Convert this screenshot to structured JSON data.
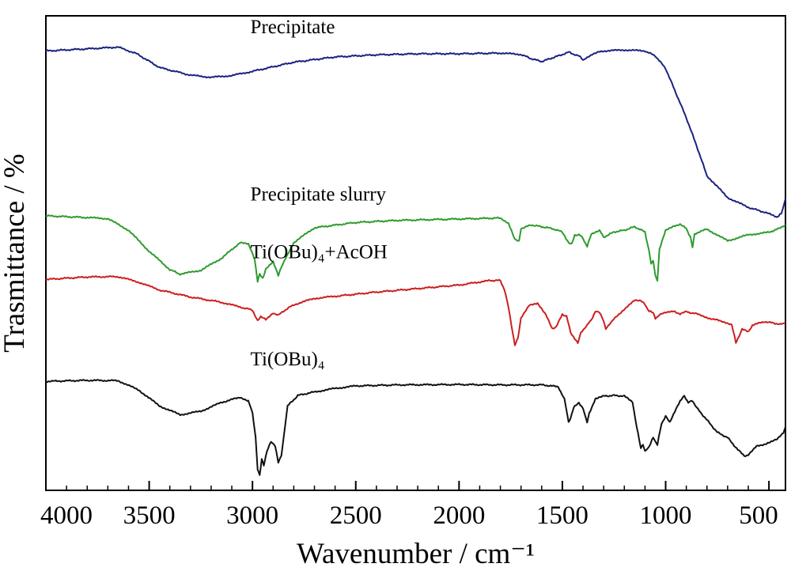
{
  "chart_data": {
    "type": "line",
    "xlabel": "Wavenumber / cm⁻¹",
    "ylabel": "Trasmittance / %",
    "xlim": [
      4000,
      420
    ],
    "x_reversed": true,
    "y_ticks_shown": false,
    "x_ticks": [
      4000,
      3500,
      3000,
      2500,
      2000,
      1500,
      1000,
      500
    ],
    "x_tick_labels": [
      "4000",
      "3500",
      "3000",
      "2500",
      "2000",
      "1500",
      "1000",
      "500"
    ],
    "y_units": "relative transmittance (stacked, offset traces; no numeric y scale printed)",
    "series": [
      {
        "name": "Precipitate",
        "color": "#1a237e",
        "points": [
          [
            4000,
            95.0
          ],
          [
            3800,
            95.6
          ],
          [
            3650,
            96.1
          ],
          [
            3560,
            94.2
          ],
          [
            3450,
            90.3
          ],
          [
            3300,
            88.1
          ],
          [
            3200,
            87.5
          ],
          [
            3100,
            88.0
          ],
          [
            3000,
            89.2
          ],
          [
            2800,
            91.8
          ],
          [
            2600,
            93.3
          ],
          [
            2400,
            93.9
          ],
          [
            2200,
            94.2
          ],
          [
            2000,
            94.2
          ],
          [
            1800,
            94.4
          ],
          [
            1700,
            94.0
          ],
          [
            1650,
            92.8
          ],
          [
            1600,
            92.0
          ],
          [
            1550,
            93.0
          ],
          [
            1500,
            94.0
          ],
          [
            1470,
            94.7
          ],
          [
            1450,
            94.2
          ],
          [
            1420,
            93.6
          ],
          [
            1400,
            92.5
          ],
          [
            1380,
            93.0
          ],
          [
            1350,
            94.3
          ],
          [
            1300,
            95.0
          ],
          [
            1200,
            95.3
          ],
          [
            1100,
            95.0
          ],
          [
            1050,
            93.6
          ],
          [
            1000,
            90.0
          ],
          [
            950,
            83.0
          ],
          [
            900,
            76.0
          ],
          [
            850,
            68.0
          ],
          [
            800,
            59.5
          ],
          [
            700,
            53.3
          ],
          [
            600,
            50.5
          ],
          [
            520,
            49.1
          ],
          [
            460,
            47.8
          ],
          [
            440,
            48.7
          ],
          [
            430,
            50.5
          ],
          [
            420,
            53.0
          ]
        ]
      },
      {
        "name": "Precipitate slurry",
        "color": "#2e9b2e",
        "points": [
          [
            4000,
            48.1
          ],
          [
            3800,
            47.6
          ],
          [
            3700,
            47.3
          ],
          [
            3600,
            44.0
          ],
          [
            3500,
            38.0
          ],
          [
            3400,
            32.8
          ],
          [
            3350,
            31.5
          ],
          [
            3250,
            32.6
          ],
          [
            3150,
            36.0
          ],
          [
            3060,
            40.5
          ],
          [
            3020,
            40.0
          ],
          [
            2990,
            36.0
          ],
          [
            2975,
            29.3
          ],
          [
            2965,
            31.5
          ],
          [
            2950,
            30.4
          ],
          [
            2935,
            33.0
          ],
          [
            2900,
            35.2
          ],
          [
            2875,
            31.0
          ],
          [
            2860,
            33.5
          ],
          [
            2800,
            40.5
          ],
          [
            2700,
            44.7
          ],
          [
            2500,
            46.2
          ],
          [
            2300,
            46.8
          ],
          [
            2000,
            47.2
          ],
          [
            1850,
            47.4
          ],
          [
            1800,
            47.5
          ],
          [
            1760,
            46.0
          ],
          [
            1730,
            41.3
          ],
          [
            1710,
            41.0
          ],
          [
            1700,
            44.5
          ],
          [
            1650,
            45.5
          ],
          [
            1600,
            45.0
          ],
          [
            1550,
            44.5
          ],
          [
            1500,
            43.5
          ],
          [
            1470,
            40.5
          ],
          [
            1455,
            40.2
          ],
          [
            1440,
            42.5
          ],
          [
            1420,
            42.8
          ],
          [
            1400,
            41.7
          ],
          [
            1380,
            39.3
          ],
          [
            1360,
            43.0
          ],
          [
            1320,
            44.0
          ],
          [
            1300,
            42.0
          ],
          [
            1250,
            43.5
          ],
          [
            1200,
            44.0
          ],
          [
            1150,
            45.0
          ],
          [
            1100,
            43.5
          ],
          [
            1080,
            38.0
          ],
          [
            1070,
            34.5
          ],
          [
            1060,
            35.5
          ],
          [
            1050,
            31.0
          ],
          [
            1040,
            29.6
          ],
          [
            1030,
            38.5
          ],
          [
            1000,
            44.0
          ],
          [
            960,
            45.3
          ],
          [
            930,
            45.6
          ],
          [
            900,
            44.5
          ],
          [
            880,
            42.0
          ],
          [
            870,
            39.3
          ],
          [
            860,
            43.0
          ],
          [
            800,
            44.3
          ],
          [
            700,
            41.0
          ],
          [
            600,
            42.7
          ],
          [
            500,
            43.4
          ],
          [
            450,
            44.5
          ],
          [
            420,
            45.6
          ]
        ]
      },
      {
        "name": "Ti(OBu)₄+AcOH",
        "color": "#cc1f1f",
        "points": [
          [
            4000,
            30.0
          ],
          [
            3800,
            30.7
          ],
          [
            3650,
            30.8
          ],
          [
            3550,
            29.2
          ],
          [
            3450,
            27.0
          ],
          [
            3300,
            25.0
          ],
          [
            3150,
            23.5
          ],
          [
            3050,
            22.0
          ],
          [
            3000,
            21.3
          ],
          [
            2975,
            18.2
          ],
          [
            2960,
            19.5
          ],
          [
            2935,
            18.5
          ],
          [
            2900,
            20.5
          ],
          [
            2875,
            19.8
          ],
          [
            2850,
            21.0
          ],
          [
            2800,
            22.8
          ],
          [
            2700,
            24.6
          ],
          [
            2600,
            25.2
          ],
          [
            2400,
            26.4
          ],
          [
            2200,
            27.4
          ],
          [
            2000,
            28.4
          ],
          [
            1850,
            29.7
          ],
          [
            1800,
            29.7
          ],
          [
            1780,
            27.0
          ],
          [
            1760,
            22.0
          ],
          [
            1740,
            14.5
          ],
          [
            1730,
            11.3
          ],
          [
            1715,
            13.5
          ],
          [
            1700,
            19.0
          ],
          [
            1660,
            22.8
          ],
          [
            1620,
            23.3
          ],
          [
            1580,
            20.0
          ],
          [
            1550,
            16.0
          ],
          [
            1530,
            16.5
          ],
          [
            1500,
            20.0
          ],
          [
            1480,
            19.6
          ],
          [
            1460,
            15.0
          ],
          [
            1440,
            13.0
          ],
          [
            1425,
            12.0
          ],
          [
            1410,
            15.0
          ],
          [
            1380,
            17.0
          ],
          [
            1360,
            18.5
          ],
          [
            1340,
            20.8
          ],
          [
            1320,
            20.8
          ],
          [
            1300,
            18.0
          ],
          [
            1290,
            15.8
          ],
          [
            1270,
            17.5
          ],
          [
            1220,
            20.5
          ],
          [
            1150,
            24.0
          ],
          [
            1120,
            24.1
          ],
          [
            1100,
            22.8
          ],
          [
            1080,
            21.0
          ],
          [
            1060,
            20.5
          ],
          [
            1050,
            18.8
          ],
          [
            1030,
            20.0
          ],
          [
            1000,
            20.5
          ],
          [
            960,
            21.0
          ],
          [
            930,
            20.2
          ],
          [
            900,
            20.8
          ],
          [
            850,
            20.2
          ],
          [
            780,
            18.8
          ],
          [
            720,
            18.0
          ],
          [
            680,
            17.2
          ],
          [
            660,
            12.0
          ],
          [
            650,
            13.0
          ],
          [
            630,
            16.0
          ],
          [
            600,
            15.0
          ],
          [
            580,
            17.0
          ],
          [
            520,
            18.0
          ],
          [
            470,
            17.5
          ],
          [
            440,
            17.3
          ],
          [
            420,
            17.5
          ]
        ]
      },
      {
        "name": "Ti(OBu)₄",
        "color": "#111111",
        "points": [
          [
            4000,
            1.0
          ],
          [
            3800,
            1.3
          ],
          [
            3650,
            1.2
          ],
          [
            3550,
            -1.5
          ],
          [
            3450,
            -6.0
          ],
          [
            3350,
            -8.5
          ],
          [
            3250,
            -7.5
          ],
          [
            3150,
            -5.0
          ],
          [
            3060,
            -3.5
          ],
          [
            3020,
            -4.5
          ],
          [
            3000,
            -8.0
          ],
          [
            2985,
            -15.0
          ],
          [
            2975,
            -24.0
          ],
          [
            2965,
            -25.6
          ],
          [
            2955,
            -21.0
          ],
          [
            2945,
            -23.0
          ],
          [
            2930,
            -19.0
          ],
          [
            2910,
            -16.0
          ],
          [
            2890,
            -17.5
          ],
          [
            2875,
            -22.0
          ],
          [
            2860,
            -20.0
          ],
          [
            2830,
            -6.0
          ],
          [
            2780,
            -3.0
          ],
          [
            2700,
            -2.0
          ],
          [
            2600,
            -1.0
          ],
          [
            2500,
            -0.3
          ],
          [
            2300,
            0.0
          ],
          [
            2000,
            0.1
          ],
          [
            1800,
            0.0
          ],
          [
            1600,
            0.0
          ],
          [
            1520,
            -0.5
          ],
          [
            1490,
            -4.0
          ],
          [
            1470,
            -10.5
          ],
          [
            1460,
            -9.5
          ],
          [
            1445,
            -6.5
          ],
          [
            1420,
            -5.0
          ],
          [
            1400,
            -6.8
          ],
          [
            1380,
            -10.5
          ],
          [
            1370,
            -8.0
          ],
          [
            1340,
            -4.0
          ],
          [
            1300,
            -3.2
          ],
          [
            1250,
            -3.0
          ],
          [
            1200,
            -3.2
          ],
          [
            1160,
            -5.0
          ],
          [
            1140,
            -12.0
          ],
          [
            1120,
            -18.0
          ],
          [
            1110,
            -17.0
          ],
          [
            1100,
            -19.0
          ],
          [
            1080,
            -17.5
          ],
          [
            1060,
            -15.0
          ],
          [
            1040,
            -17.0
          ],
          [
            1020,
            -11.0
          ],
          [
            1000,
            -9.0
          ],
          [
            980,
            -10.5
          ],
          [
            950,
            -7.0
          ],
          [
            930,
            -4.5
          ],
          [
            910,
            -3.2
          ],
          [
            890,
            -5.0
          ],
          [
            870,
            -4.5
          ],
          [
            850,
            -6.5
          ],
          [
            800,
            -10.0
          ],
          [
            750,
            -13.5
          ],
          [
            700,
            -15.0
          ],
          [
            650,
            -18.5
          ],
          [
            620,
            -20.2
          ],
          [
            600,
            -20.0
          ],
          [
            560,
            -17.5
          ],
          [
            500,
            -16.5
          ],
          [
            460,
            -15.5
          ],
          [
            430,
            -13.5
          ],
          [
            420,
            -12.0
          ]
        ]
      }
    ],
    "annotations": [
      {
        "text": "Precipitate",
        "x": 3010,
        "y": 100.0
      },
      {
        "text": "Precipitate slurry",
        "x": 3010,
        "y": 52.5
      },
      {
        "text": "Ti(OBu)₄+AcOH",
        "x": 3010,
        "y": 36.0
      },
      {
        "text": "Ti(OBu)₄",
        "x": 3010,
        "y": 5.5
      }
    ]
  }
}
